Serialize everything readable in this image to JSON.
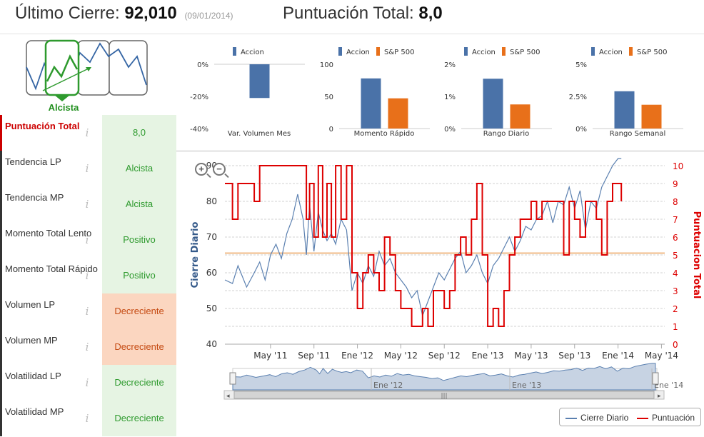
{
  "header": {
    "last_close_label": "Último Cierre:",
    "last_close_value": "92,010",
    "last_close_date": "(09/01/2014)",
    "total_score_label": "Puntuación Total:",
    "total_score_value": "8,0"
  },
  "signal": {
    "label": "Alcista"
  },
  "metrics": [
    {
      "name": "Puntuación Total",
      "value": "8,0",
      "tone": "green"
    },
    {
      "name": "Tendencia LP",
      "value": "Alcista",
      "tone": "green"
    },
    {
      "name": "Tendencia MP",
      "value": "Alcista",
      "tone": "green"
    },
    {
      "name": "Momento Total Lento",
      "value": "Positivo",
      "tone": "green"
    },
    {
      "name": "Momento Total Rápido",
      "value": "Positivo",
      "tone": "green"
    },
    {
      "name": "Volumen LP",
      "value": "Decreciente",
      "tone": "orange"
    },
    {
      "name": "Volumen MP",
      "value": "Decreciente",
      "tone": "orange"
    },
    {
      "name": "Volatilidad LP",
      "value": "Decreciente",
      "tone": "green"
    },
    {
      "name": "Volatilidad MP",
      "value": "Decreciente",
      "tone": "green"
    }
  ],
  "info_glyph": "i",
  "colors": {
    "accion": "#4a72a8",
    "sp500": "#e8701a",
    "score": "#dd0000",
    "close": "#5b80b0",
    "reference": "#f0bb88"
  },
  "chart_data": [
    {
      "type": "bar",
      "title": "Var. Volumen Mes",
      "series": [
        {
          "name": "Accion",
          "values": [
            -21
          ]
        }
      ],
      "yticks": [
        "0%",
        "-20%",
        "-40%"
      ],
      "ylim": [
        -40,
        0
      ]
    },
    {
      "type": "bar",
      "title": "Momento Rápido",
      "series": [
        {
          "name": "Accion",
          "values": [
            78
          ]
        },
        {
          "name": "S&P 500",
          "values": [
            47
          ]
        }
      ],
      "yticks": [
        "100",
        "50",
        "0"
      ],
      "ylim": [
        0,
        100
      ]
    },
    {
      "type": "bar",
      "title": "Rango Diario",
      "series": [
        {
          "name": "Accion",
          "values": [
            1.55
          ]
        },
        {
          "name": "S&P 500",
          "values": [
            0.75
          ]
        }
      ],
      "yticks": [
        "2%",
        "1%",
        "0%"
      ],
      "ylim": [
        0,
        2
      ]
    },
    {
      "type": "bar",
      "title": "Rango Semanal",
      "series": [
        {
          "name": "Accion",
          "values": [
            2.9
          ]
        },
        {
          "name": "S&P 500",
          "values": [
            1.85
          ]
        }
      ],
      "yticks": [
        "5%",
        "2.5%",
        "0%"
      ],
      "ylim": [
        0,
        5
      ]
    },
    {
      "type": "line",
      "ylabel_left": "Cierre Diario",
      "ylabel_right": "Puntuacion Total",
      "ylim_left": [
        40,
        90
      ],
      "yticks_left": [
        "90",
        "80",
        "70",
        "60",
        "50",
        "40"
      ],
      "ylim_right": [
        0,
        10
      ],
      "yticks_right": [
        "10",
        "9",
        "8",
        "7",
        "6",
        "5",
        "4",
        "3",
        "2",
        "1",
        "0"
      ],
      "x_range": [
        0.8,
        41.3
      ],
      "xticks": [
        {
          "label": "May '11",
          "at": 5
        },
        {
          "label": "Sep '11",
          "at": 9
        },
        {
          "label": "Ene '12",
          "at": 13
        },
        {
          "label": "May '12",
          "at": 17
        },
        {
          "label": "Sep '12",
          "at": 21
        },
        {
          "label": "Ene '13",
          "at": 25
        },
        {
          "label": "May '13",
          "at": 29
        },
        {
          "label": "Sep '13",
          "at": 33
        },
        {
          "label": "Ene '14",
          "at": 37
        },
        {
          "label": "May '14",
          "at": 41
        }
      ],
      "reference_line": 5.1,
      "series": [
        {
          "name": "Cierre Diario",
          "x": [
            0.8,
            1.5,
            2,
            2.8,
            3.5,
            4,
            4.5,
            5,
            5.5,
            6,
            6.5,
            7,
            7.5,
            8,
            8.3,
            8.6,
            9,
            9.4,
            9.8,
            10.2,
            10.6,
            11,
            11.5,
            12,
            12.5,
            13,
            13.5,
            14,
            14.5,
            15,
            15.5,
            16,
            16.5,
            17,
            17.5,
            18,
            18.5,
            19,
            19.5,
            20,
            20.5,
            21,
            21.5,
            22,
            22.5,
            23,
            23.5,
            24,
            24.5,
            25,
            25.5,
            26,
            26.5,
            27,
            27.5,
            28,
            28.5,
            29,
            29.5,
            30,
            30.5,
            31,
            31.5,
            32,
            32.5,
            33,
            33.5,
            34,
            34.5,
            35,
            35.5,
            36,
            36.5,
            37,
            37.3
          ],
          "values": [
            58,
            57,
            62,
            56,
            60,
            63,
            58,
            65,
            68,
            64,
            71,
            75,
            82,
            75,
            65,
            79,
            66,
            77,
            72,
            69,
            71,
            68,
            75,
            72,
            55,
            60,
            57,
            62,
            59,
            66,
            62,
            64,
            60,
            58,
            56,
            53,
            55,
            48,
            52,
            56,
            60,
            58,
            61,
            64,
            66,
            60,
            62,
            65,
            60,
            57,
            62,
            64,
            67,
            70,
            66,
            69,
            73,
            72,
            75,
            76,
            80,
            74,
            80,
            79,
            84,
            78,
            83,
            72,
            80,
            78,
            84,
            87,
            90,
            92,
            92
          ]
        },
        {
          "name": "Puntuación",
          "x": [
            0.8,
            1.5,
            2,
            2.8,
            3.5,
            4,
            4.5,
            5,
            5.5,
            6,
            6.5,
            7,
            7.5,
            8,
            8.3,
            8.6,
            9,
            9.4,
            9.8,
            10.2,
            10.6,
            11,
            11.5,
            12,
            12.5,
            13,
            13.5,
            14,
            14.5,
            15,
            15.5,
            16,
            16.5,
            17,
            17.5,
            18,
            18.5,
            19,
            19.5,
            20,
            20.5,
            21,
            21.5,
            22,
            22.5,
            23,
            23.5,
            24,
            24.5,
            25,
            25.5,
            26,
            26.5,
            27,
            27.5,
            28,
            28.5,
            29,
            29.5,
            30,
            30.5,
            31,
            31.5,
            32,
            32.5,
            33,
            33.5,
            34,
            34.5,
            35,
            35.5,
            36,
            36.5,
            37,
            37.3
          ],
          "values": [
            9,
            7,
            9,
            9,
            8,
            10,
            10,
            10,
            10,
            10,
            10,
            10,
            10,
            10,
            7,
            9,
            6,
            10,
            6,
            9,
            6,
            10,
            7,
            10,
            4,
            2,
            4,
            5,
            4,
            3,
            6,
            5,
            3,
            2,
            2,
            1,
            1,
            2,
            1,
            3,
            3,
            2,
            3,
            5,
            6,
            5,
            7,
            9,
            5,
            1,
            2,
            1,
            3,
            5,
            6,
            7,
            7,
            8,
            7,
            8,
            8,
            8,
            8,
            5,
            8,
            7,
            6,
            8,
            8,
            7,
            5,
            8,
            9,
            9,
            8
          ]
        }
      ],
      "navigator": {
        "xticks": [
          "Ene '12",
          "Ene '13",
          "Ene '14"
        ]
      },
      "legend": [
        "Cierre Diario",
        "Puntuación"
      ]
    }
  ]
}
